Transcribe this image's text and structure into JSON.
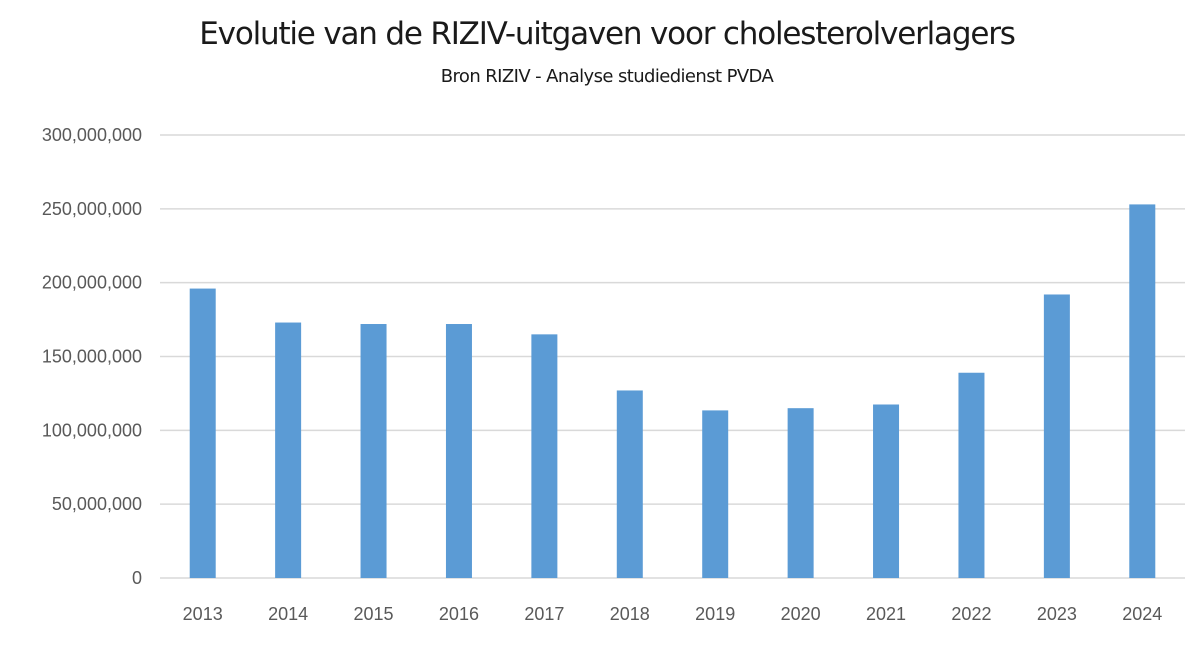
{
  "chart_data": {
    "type": "bar",
    "title": "Evolutie van de RIZIV-uitgaven voor cholesterolverlagers",
    "subtitle": "Bron RIZIV - Analyse studiedienst PVDA",
    "xlabel": "",
    "ylabel": "",
    "categories": [
      "2013",
      "2014",
      "2015",
      "2016",
      "2017",
      "2018",
      "2019",
      "2020",
      "2021",
      "2022",
      "2023",
      "2024"
    ],
    "values": [
      196000000,
      173000000,
      172000000,
      172000000,
      165000000,
      127000000,
      113500000,
      115000000,
      117500000,
      139000000,
      192000000,
      253000000
    ],
    "ylim": [
      0,
      300000000
    ],
    "yticks": [
      0,
      50000000,
      100000000,
      150000000,
      200000000,
      250000000,
      300000000
    ],
    "ytick_labels": [
      "0",
      "50,000,000",
      "100,000,000",
      "150,000,000",
      "200,000,000",
      "250,000,000",
      "300,000,000"
    ],
    "grid": true,
    "legend": "none",
    "bar_color": "#5b9bd5",
    "grid_color": "#d9d9d9"
  }
}
